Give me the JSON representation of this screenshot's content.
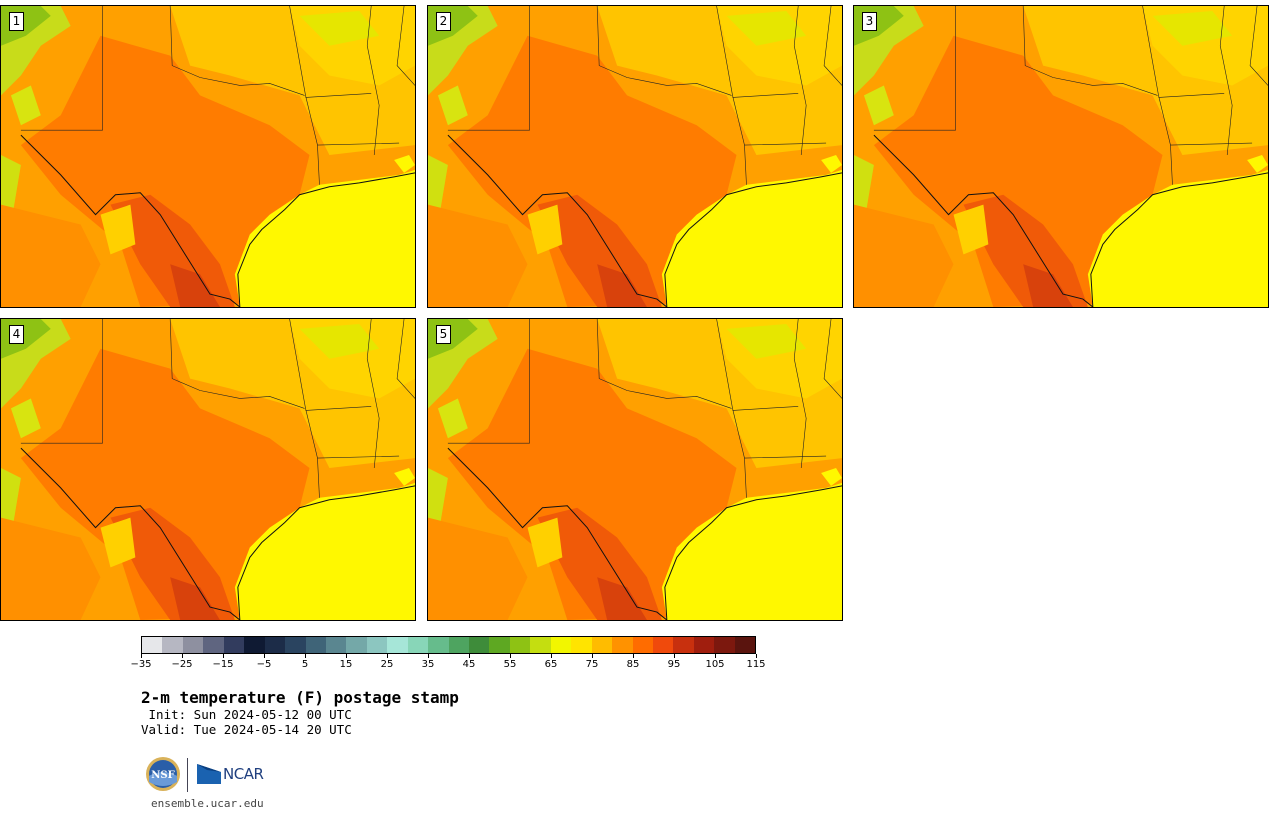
{
  "panels": [
    {
      "label": "1"
    },
    {
      "label": "2"
    },
    {
      "label": "3"
    },
    {
      "label": "4"
    },
    {
      "label": "5"
    }
  ],
  "colorbar": {
    "colors": [
      "#e6e7ea",
      "#b6b7c2",
      "#8e90a0",
      "#5f6580",
      "#323c5e",
      "#0f1a33",
      "#1c2c48",
      "#2a4460",
      "#3f6478",
      "#5a8690",
      "#74a8a8",
      "#8cc6c0",
      "#a6e6d8",
      "#88d6b8",
      "#66bc8c",
      "#4ea460",
      "#3e8c3a",
      "#5ea822",
      "#8ec214",
      "#c4de10",
      "#f2f600",
      "#ffe400",
      "#ffbc00",
      "#ff9200",
      "#ff6c00",
      "#f04a0c",
      "#c8300e",
      "#a01e0e",
      "#7c180e",
      "#5a140e"
    ],
    "tick_labels": [
      "−35",
      "−25",
      "−15",
      "−5",
      "5",
      "15",
      "25",
      "35",
      "45",
      "55",
      "65",
      "75",
      "85",
      "95",
      "105",
      "115"
    ]
  },
  "title": "2-m temperature (F) postage stamp",
  "init": " Init: Sun 2024-05-12 00 UTC",
  "valid": "Valid: Tue 2024-05-14 20 UTC",
  "logos": {
    "nsf": "NSF",
    "ncar": "NCAR"
  },
  "footer": "ensemble.ucar.edu"
}
